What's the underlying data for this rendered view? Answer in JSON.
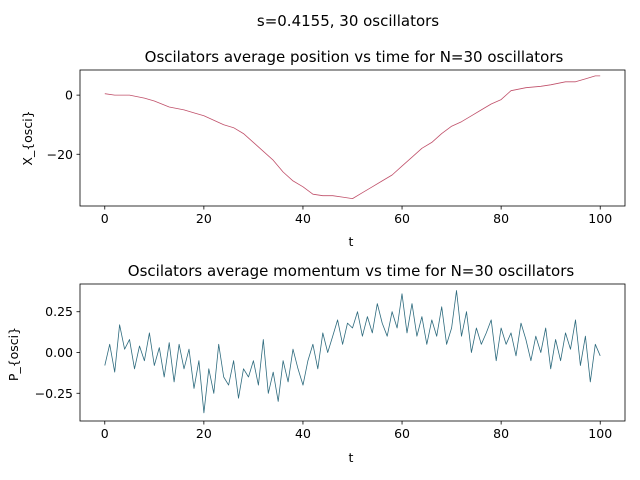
{
  "figure": {
    "suptitle": "s=0.4155, 30 oscillators"
  },
  "chart_data": [
    {
      "type": "line",
      "title": "Oscilators average position vs time for N=30 oscillators",
      "xlabel": "t",
      "ylabel": "X_{osci}",
      "xlim": [
        -5,
        105
      ],
      "ylim": [
        -37.5,
        8.5
      ],
      "xticks": [
        0,
        20,
        40,
        60,
        80,
        100
      ],
      "yticks": [
        0,
        -20
      ],
      "grid": false,
      "series": [
        {
          "color": "#c0506a",
          "x": [
            0,
            2,
            5,
            8,
            10,
            13,
            16,
            18,
            20,
            22,
            24,
            26,
            28,
            30,
            32,
            34,
            36,
            38,
            40,
            42,
            44,
            46,
            48,
            50,
            52,
            54,
            56,
            58,
            60,
            62,
            64,
            66,
            68,
            70,
            72,
            74,
            76,
            78,
            80,
            82,
            85,
            88,
            90,
            93,
            95,
            97,
            99,
            100
          ],
          "y": [
            0.5,
            0,
            0,
            -1,
            -2,
            -4,
            -5,
            -6,
            -7,
            -8.5,
            -10,
            -11,
            -13,
            -16,
            -19,
            -22,
            -26,
            -29,
            -31,
            -33.5,
            -34,
            -34,
            -34.5,
            -35,
            -33,
            -31,
            -29,
            -27,
            -24,
            -21,
            -18,
            -16,
            -13,
            -10.5,
            -9,
            -7,
            -5,
            -3,
            -1.5,
            1.5,
            2.5,
            3,
            3.5,
            4.5,
            4.5,
            5.5,
            6.5,
            6.5
          ]
        }
      ]
    },
    {
      "type": "line",
      "title": "Oscilators average momentum vs time for N=30 oscillators",
      "xlabel": "t",
      "ylabel": "P_{osci}",
      "xlim": [
        -5,
        105
      ],
      "ylim": [
        -0.42,
        0.42
      ],
      "xticks": [
        0,
        20,
        40,
        60,
        80,
        100
      ],
      "yticks": [
        0.25,
        0.0,
        -0.25
      ],
      "grid": false,
      "series": [
        {
          "color": "#2e6b7e",
          "x": [
            0,
            1,
            2,
            3,
            4,
            5,
            6,
            7,
            8,
            9,
            10,
            11,
            12,
            13,
            14,
            15,
            16,
            17,
            18,
            19,
            20,
            21,
            22,
            23,
            24,
            25,
            26,
            27,
            28,
            29,
            30,
            31,
            32,
            33,
            34,
            35,
            36,
            37,
            38,
            39,
            40,
            41,
            42,
            43,
            44,
            45,
            46,
            47,
            48,
            49,
            50,
            51,
            52,
            53,
            54,
            55,
            56,
            57,
            58,
            59,
            60,
            61,
            62,
            63,
            64,
            65,
            66,
            67,
            68,
            69,
            70,
            71,
            72,
            73,
            74,
            75,
            76,
            77,
            78,
            79,
            80,
            81,
            82,
            83,
            84,
            85,
            86,
            87,
            88,
            89,
            90,
            91,
            92,
            93,
            94,
            95,
            96,
            97,
            98,
            99,
            100
          ],
          "y": [
            -0.08,
            0.05,
            -0.12,
            0.17,
            0.02,
            0.08,
            -0.1,
            0.04,
            -0.05,
            0.12,
            -0.08,
            0.03,
            -0.15,
            0.06,
            -0.18,
            0.05,
            -0.1,
            0.02,
            -0.22,
            -0.05,
            -0.37,
            -0.1,
            -0.25,
            0.05,
            -0.15,
            -0.2,
            -0.05,
            -0.28,
            -0.1,
            -0.15,
            -0.05,
            -0.2,
            0.08,
            -0.25,
            -0.12,
            -0.3,
            -0.05,
            -0.18,
            0.02,
            -0.1,
            -0.2,
            -0.05,
            0.05,
            -0.1,
            0.12,
            0.0,
            0.1,
            0.2,
            0.05,
            0.18,
            0.15,
            0.25,
            0.1,
            0.22,
            0.12,
            0.3,
            0.18,
            0.1,
            0.25,
            0.15,
            0.36,
            0.12,
            0.3,
            0.1,
            0.22,
            0.05,
            0.2,
            0.1,
            0.28,
            0.05,
            0.15,
            0.38,
            0.1,
            0.25,
            0.0,
            0.15,
            0.05,
            0.12,
            0.2,
            -0.05,
            0.15,
            0.05,
            0.12,
            -0.02,
            0.18,
            0.08,
            -0.05,
            0.1,
            0.0,
            0.15,
            -0.1,
            0.08,
            -0.05,
            0.12,
            0.02,
            0.2,
            -0.08,
            0.1,
            -0.18,
            0.05,
            -0.02
          ]
        }
      ]
    }
  ]
}
